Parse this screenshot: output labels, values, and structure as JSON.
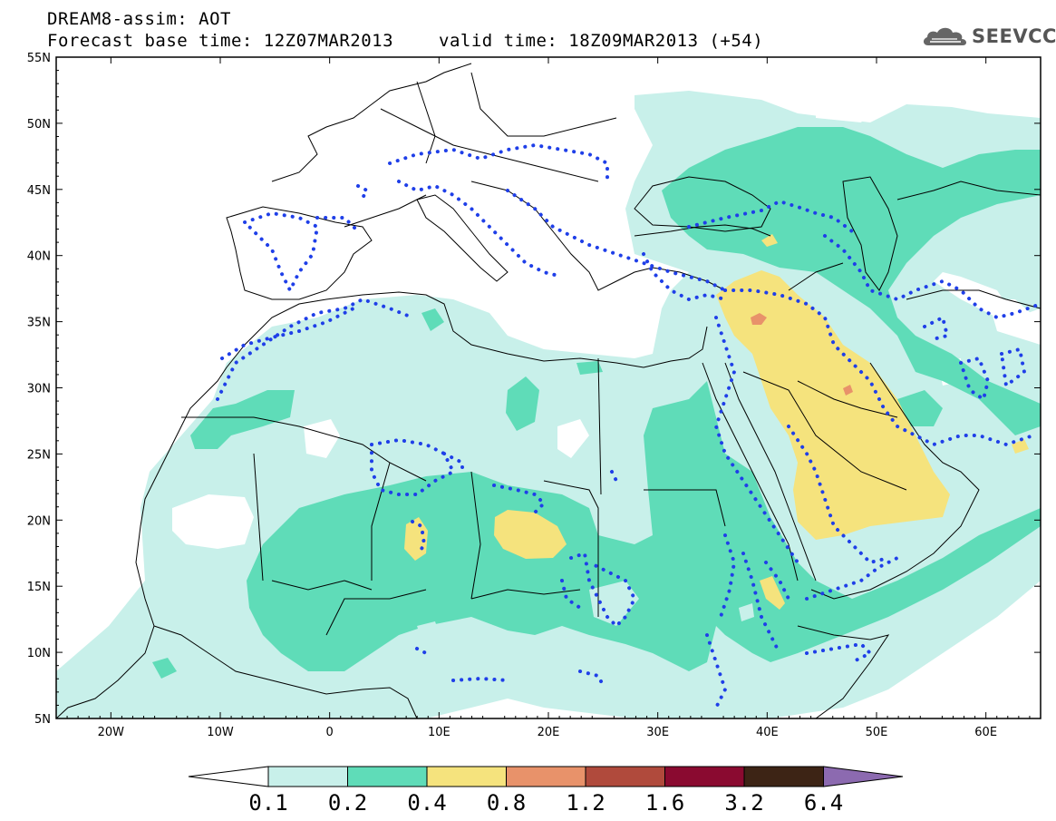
{
  "title_line1": "DREAM8-assim: AOT",
  "title_line2": "Forecast base time: 12Z07MAR2013",
  "title_valid": "valid time: 18Z09MAR2013 (+54)",
  "logo_text": "SEEVCCC",
  "map": {
    "lat_ticks": [
      "55N",
      "50N",
      "45N",
      "40N",
      "35N",
      "30N",
      "25N",
      "20N",
      "15N",
      "10N",
      "5N"
    ],
    "lon_ticks": [
      "20W",
      "10W",
      "0",
      "10E",
      "20E",
      "30E",
      "40E",
      "50E",
      "60E"
    ]
  },
  "colorbar": {
    "labels": [
      "0.1",
      "0.2",
      "0.4",
      "0.8",
      "1.2",
      "1.6",
      "3.2",
      "6.4"
    ],
    "colors": [
      "#ffffff",
      "#c8f0ea",
      "#5fdcb8",
      "#f5e37d",
      "#e8926a",
      "#b04a3c",
      "#8a0a30",
      "#3d2415",
      "#8c6ab0"
    ]
  },
  "shading_colors": {
    "level1": "#c8f0ea",
    "level2": "#5fdcb8",
    "level3": "#f5e37d",
    "level4": "#e8926a"
  },
  "contour_color": "#1f3fe8"
}
